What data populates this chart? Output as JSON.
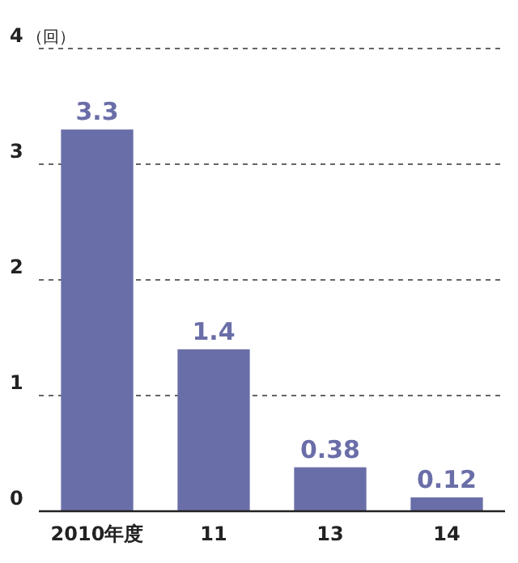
{
  "chart_data": {
    "type": "bar",
    "ylabel": "（回）",
    "categories": [
      "2010年度",
      "11",
      "13",
      "14"
    ],
    "values": [
      3.3,
      1.4,
      0.38,
      0.12
    ],
    "color": "#6a6ea8",
    "ylim": [
      0,
      4
    ],
    "yticks": [
      0,
      1,
      2,
      3,
      4
    ],
    "grid": "y",
    "data_labels": true
  }
}
